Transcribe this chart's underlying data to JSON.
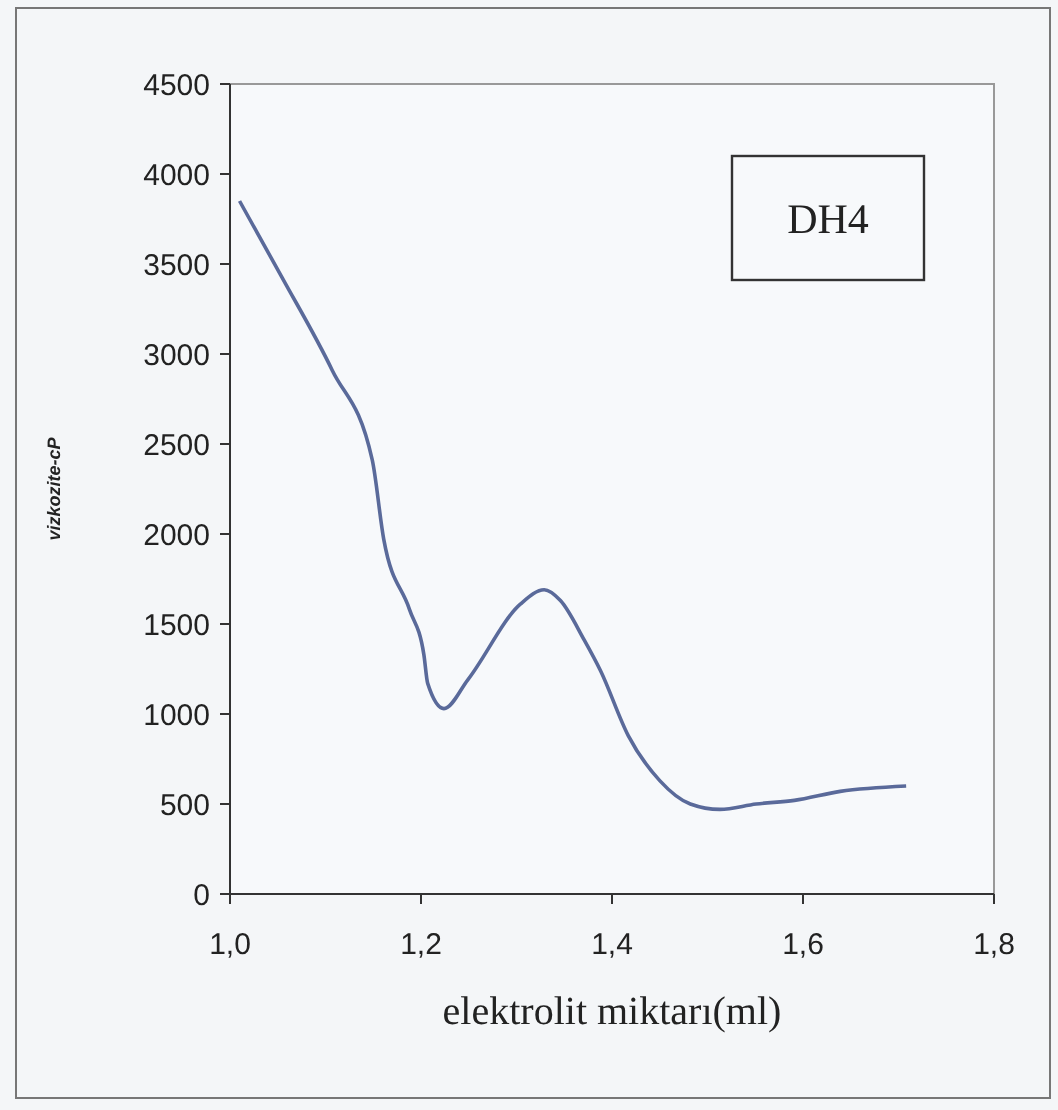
{
  "chart_data": {
    "type": "line",
    "xlabel": "elektrolit miktarı(ml)",
    "ylabel": "vizkozite-cP",
    "annotations": [
      "DH4"
    ],
    "xlim": [
      1.0,
      1.8
    ],
    "xticks": [
      {
        "value": 1.0,
        "label": "1,0"
      },
      {
        "value": 1.2,
        "label": "1,2"
      },
      {
        "value": 1.4,
        "label": "1,4"
      },
      {
        "value": 1.6,
        "label": "1,6"
      },
      {
        "value": 1.8,
        "label": "1,8"
      }
    ],
    "ylim": [
      0,
      4500
    ],
    "yticks": [
      0,
      500,
      1000,
      1500,
      2000,
      2500,
      3000,
      3500,
      4000,
      4500
    ],
    "grid": false,
    "marker": "none",
    "line_style": "solid",
    "series": [
      {
        "color": "#5a6a9a",
        "x": [
          1.01,
          1.054,
          1.107,
          1.149,
          1.161,
          1.188,
          1.203,
          1.207,
          1.224,
          1.249,
          1.304,
          1.329,
          1.346,
          1.371,
          1.388,
          1.417,
          1.45,
          1.482,
          1.513,
          1.551,
          1.591,
          1.639,
          1.708
        ],
        "values": [
          3850,
          3430,
          2910,
          2410,
          1970,
          1580,
          1330,
          1170,
          1030,
          1190,
          1610,
          1690,
          1630,
          1410,
          1240,
          880,
          630,
          500,
          470,
          500,
          520,
          570,
          600
        ]
      }
    ]
  }
}
